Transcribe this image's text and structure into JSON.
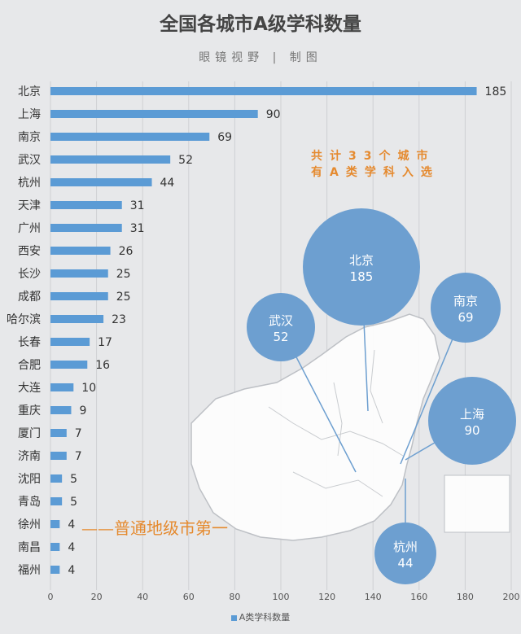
{
  "title": "全国各城市A级学科数量",
  "subtitle": "眼镜视野 | 制图",
  "annotation_line1": "共计33个城市",
  "annotation_line2": "有A类学科入选",
  "note": "——普通地级市第一",
  "legend_label": "A类学科数量",
  "colors": {
    "bar": "#5b9bd5",
    "bubble": "#6d9fd0",
    "accent": "#e58a2f",
    "background": "#e7e8ea"
  },
  "chart_data": {
    "type": "bar",
    "orientation": "horizontal",
    "categories": [
      "北京",
      "上海",
      "南京",
      "武汉",
      "杭州",
      "天津",
      "广州",
      "西安",
      "长沙",
      "成都",
      "哈尔滨",
      "长春",
      "合肥",
      "大连",
      "重庆",
      "厦门",
      "济南",
      "沈阳",
      "青岛",
      "徐州",
      "南昌",
      "福州"
    ],
    "values": [
      185,
      90,
      69,
      52,
      44,
      31,
      31,
      26,
      25,
      25,
      23,
      17,
      16,
      10,
      9,
      7,
      7,
      5,
      5,
      4,
      4,
      4
    ],
    "xlim": [
      0,
      200
    ],
    "xticks": [
      0,
      20,
      40,
      60,
      80,
      100,
      120,
      140,
      160,
      180,
      200
    ],
    "legend": "bottom",
    "bubbles": [
      {
        "label": "北京",
        "value": 185
      },
      {
        "label": "武汉",
        "value": 52
      },
      {
        "label": "南京",
        "value": 69
      },
      {
        "label": "上海",
        "value": 90
      },
      {
        "label": "杭州",
        "value": 44
      }
    ]
  }
}
